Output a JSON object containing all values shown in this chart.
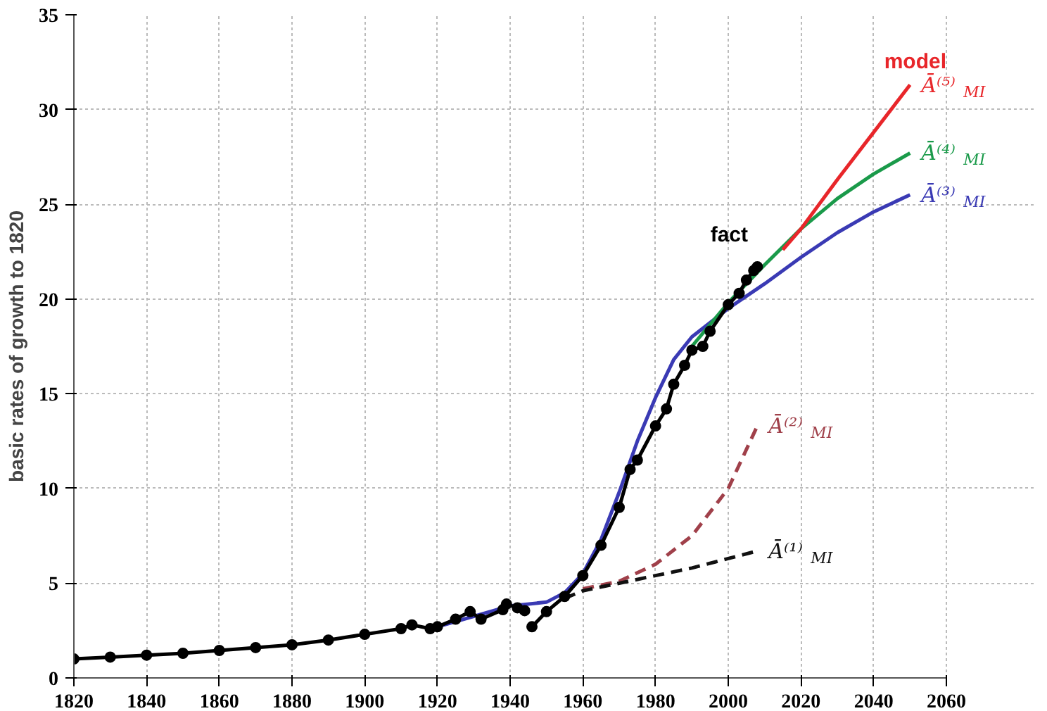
{
  "chart_data": {
    "type": "line",
    "ylabel": "basic rates of growth to 1820",
    "xlim": [
      1820,
      2060
    ],
    "ylim": [
      0,
      35
    ],
    "xticks": [
      1820,
      1840,
      1860,
      1880,
      1900,
      1920,
      1940,
      1960,
      1980,
      2000,
      2020,
      2040,
      2060
    ],
    "yticks": [
      0,
      5,
      10,
      15,
      20,
      25,
      30,
      35
    ],
    "grid": true,
    "legend": false,
    "series": [
      {
        "name": "Ā⁽³⁾$_{MI}$",
        "color": "#3a3ab4",
        "x": [
          1920,
          1940,
          1950,
          1955,
          1960,
          1965,
          1970,
          1975,
          1980,
          1985,
          1990,
          2000,
          2010,
          2020,
          2030,
          2040,
          2050
        ],
        "values": [
          2.7,
          3.8,
          4.0,
          4.5,
          5.5,
          7.3,
          9.8,
          12.5,
          14.8,
          16.8,
          18.0,
          19.5,
          20.8,
          22.2,
          23.5,
          24.6,
          25.5
        ]
      },
      {
        "name": "Ā⁽⁴⁾$_{MI}$",
        "color": "#1a9a4a",
        "x": [
          1990,
          2000,
          2010,
          2020,
          2030,
          2040,
          2050
        ],
        "values": [
          17.5,
          19.8,
          21.8,
          23.7,
          25.3,
          26.6,
          27.7
        ]
      },
      {
        "name": "Ā⁽⁵⁾$_{MI}$",
        "color": "#e8262a",
        "x": [
          2015,
          2020,
          2030,
          2040,
          2050
        ],
        "values": [
          22.6,
          23.7,
          26.3,
          28.8,
          31.3
        ]
      },
      {
        "name": "Ā⁽²⁾$_{MI}$",
        "color": "#a0404a",
        "line_style": "dashed",
        "x": [
          1960,
          1970,
          1980,
          1990,
          2000,
          2008
        ],
        "values": [
          4.7,
          5.1,
          6.0,
          7.5,
          10.0,
          13.3
        ]
      },
      {
        "name": "Ā⁽¹⁾$_{MI}$",
        "color": "#111111",
        "line_style": "dashed",
        "x": [
          1955,
          1960,
          1970,
          1980,
          1990,
          2000,
          2008
        ],
        "values": [
          4.2,
          4.6,
          5.0,
          5.4,
          5.8,
          6.3,
          6.7
        ]
      },
      {
        "name": "fact",
        "color": "#000000",
        "marker": "circle",
        "x": [
          1820,
          1830,
          1840,
          1850,
          1860,
          1870,
          1880,
          1890,
          1900,
          1910,
          1913,
          1918,
          1920,
          1925,
          1929,
          1932,
          1938,
          1939,
          1942,
          1944,
          1945,
          1946,
          1950,
          1955,
          1960,
          1965,
          1970,
          1973,
          1975,
          1980,
          1983,
          1985,
          1988,
          1990,
          1993,
          1995,
          2000,
          2003,
          2005,
          2007,
          2008
        ],
        "values": [
          1.0,
          1.1,
          1.2,
          1.3,
          1.45,
          1.6,
          1.75,
          2.0,
          2.3,
          2.6,
          2.8,
          2.6,
          2.7,
          3.1,
          3.5,
          3.1,
          3.6,
          3.9,
          3.7,
          3.55,
          null,
          2.7,
          3.5,
          4.3,
          5.4,
          7.0,
          9.0,
          11.0,
          11.5,
          13.3,
          14.2,
          15.5,
          16.5,
          17.3,
          17.5,
          18.3,
          19.7,
          20.3,
          21.0,
          21.5,
          21.7
        ]
      }
    ],
    "annotations": [
      "model"
    ]
  }
}
